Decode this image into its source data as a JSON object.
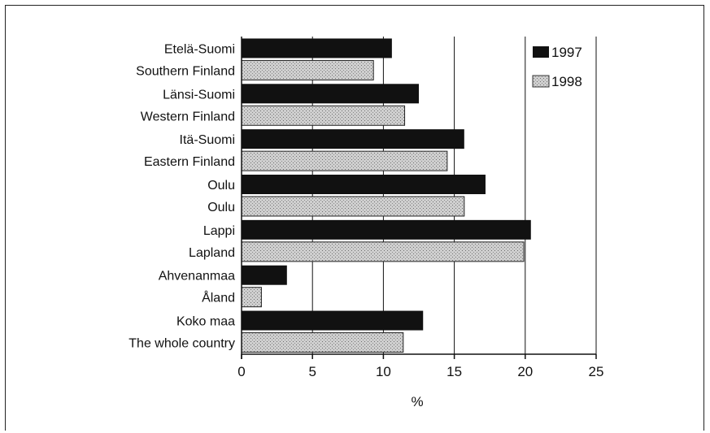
{
  "chart_data": {
    "type": "bar",
    "orientation": "horizontal",
    "groups": [
      {
        "labels": [
          "Etelä-Suomi",
          "Southern Finland"
        ]
      },
      {
        "labels": [
          "Länsi-Suomi",
          "Western Finland"
        ]
      },
      {
        "labels": [
          "Itä-Suomi",
          "Eastern Finland"
        ]
      },
      {
        "labels": [
          "Oulu",
          "Oulu"
        ]
      },
      {
        "labels": [
          "Lappi",
          "Lapland"
        ]
      },
      {
        "labels": [
          "Ahvenanmaa",
          "Åland"
        ]
      },
      {
        "labels": [
          "Koko maa",
          "The whole country"
        ]
      }
    ],
    "series": [
      {
        "name": "1997",
        "color": "#111111",
        "values": [
          10.6,
          12.5,
          15.7,
          17.2,
          20.4,
          3.2,
          12.8
        ]
      },
      {
        "name": "1998",
        "color": "#b4b4b4",
        "values": [
          9.3,
          11.5,
          14.5,
          15.7,
          19.9,
          1.4,
          11.4
        ]
      }
    ],
    "xlabel": "%",
    "xlim": [
      0,
      25
    ],
    "xticks": [
      "0",
      "5",
      "10",
      "15",
      "20",
      "25"
    ],
    "grid": "vertical",
    "legend": "top-right"
  }
}
